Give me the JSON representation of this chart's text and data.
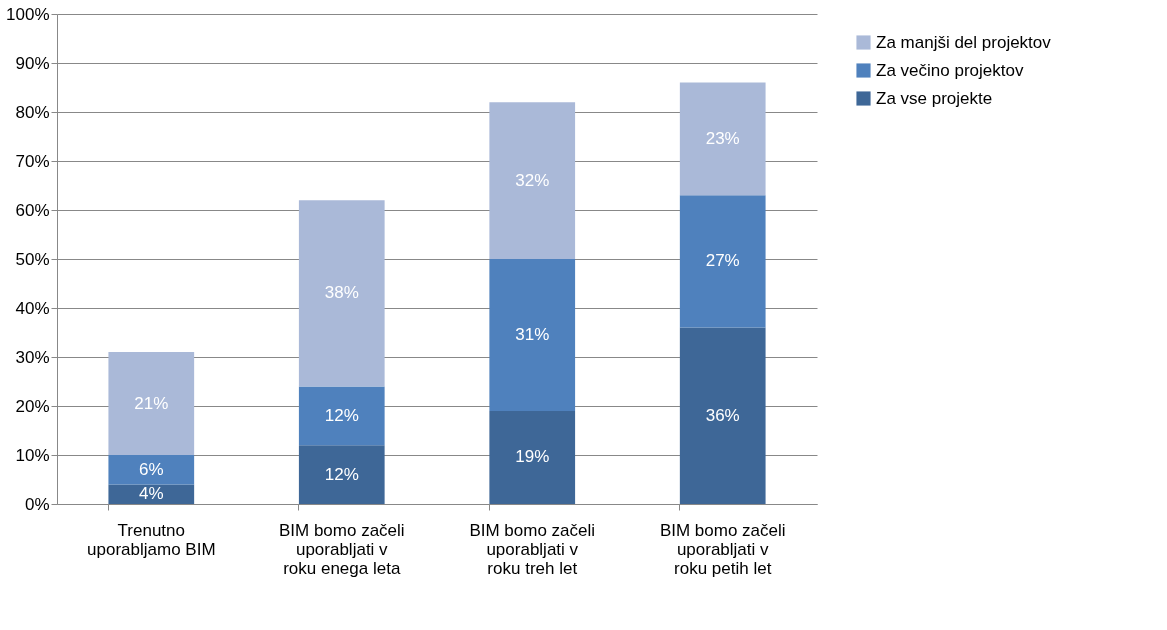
{
  "chart_data": {
    "type": "bar",
    "stacked": true,
    "categories": [
      "Trenutno uporabljamo BIM",
      "BIM bomo začeli uporabljati v roku enega leta",
      "BIM bomo začeli uporabljati v roku treh let",
      "BIM bomo začeli uporabljati v roku petih let"
    ],
    "series": [
      {
        "name": "Za vse projekte",
        "color": "#3e6797",
        "values": [
          4,
          12,
          19,
          36
        ],
        "value_labels": [
          "4%",
          "12%",
          "19%",
          "36%"
        ]
      },
      {
        "name": "Za večino projektov",
        "color": "#4f81bd",
        "values": [
          6,
          12,
          31,
          27
        ],
        "value_labels": [
          "6%",
          "12%",
          "31%",
          "27%"
        ]
      },
      {
        "name": "Za manjši del projektov",
        "color": "#aab9d8",
        "values": [
          21,
          38,
          32,
          23
        ],
        "value_labels": [
          "21%",
          "38%",
          "32%",
          "23%"
        ]
      }
    ],
    "ylim": [
      0,
      100
    ],
    "yticks": [
      {
        "value": 0,
        "label": "0%"
      },
      {
        "value": 10,
        "label": "10%"
      },
      {
        "value": 20,
        "label": "20%"
      },
      {
        "value": 30,
        "label": "30%"
      },
      {
        "value": 40,
        "label": "40%"
      },
      {
        "value": 50,
        "label": "50%"
      },
      {
        "value": 60,
        "label": "60%"
      },
      {
        "value": 70,
        "label": "70%"
      },
      {
        "value": 80,
        "label": "80%"
      },
      {
        "value": 90,
        "label": "90%"
      },
      {
        "value": 100,
        "label": "100%"
      }
    ],
    "grid": "y",
    "legend": "right"
  }
}
